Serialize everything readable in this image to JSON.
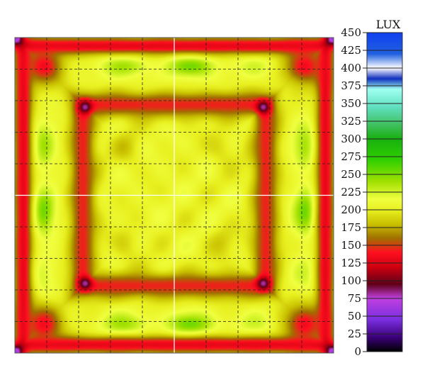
{
  "chart_data": {
    "type": "heatmap",
    "title": "",
    "xlabel": "",
    "ylabel": "",
    "colorbar": {
      "label": "LUX",
      "range": [
        0,
        450
      ],
      "ticks": [
        "0",
        "25",
        "50",
        "75",
        "100",
        "125",
        "150",
        "175",
        "200",
        "225",
        "250",
        "275",
        "300",
        "325",
        "350",
        "375",
        "400",
        "425",
        "450"
      ],
      "stops": [
        {
          "value": 0,
          "color": "#000000"
        },
        {
          "value": 20,
          "color": "#3a0078"
        },
        {
          "value": 45,
          "color": "#7a2ee0"
        },
        {
          "value": 75,
          "color": "#c040e0"
        },
        {
          "value": 95,
          "color": "#600018"
        },
        {
          "value": 120,
          "color": "#d00010"
        },
        {
          "value": 140,
          "color": "#ff1020"
        },
        {
          "value": 160,
          "color": "#a07000"
        },
        {
          "value": 180,
          "color": "#c8c000"
        },
        {
          "value": 200,
          "color": "#e8f020"
        },
        {
          "value": 215,
          "color": "#f0ff40"
        },
        {
          "value": 240,
          "color": "#a0e000"
        },
        {
          "value": 270,
          "color": "#30d000"
        },
        {
          "value": 300,
          "color": "#18b010"
        },
        {
          "value": 320,
          "color": "#40c060"
        },
        {
          "value": 345,
          "color": "#60e0c0"
        },
        {
          "value": 370,
          "color": "#a0fff0"
        },
        {
          "value": 385,
          "color": "#1030c0"
        },
        {
          "value": 400,
          "color": "#ffffff"
        },
        {
          "value": 420,
          "color": "#2060e0"
        },
        {
          "value": 450,
          "color": "#1040f0"
        }
      ]
    },
    "grid": true,
    "description_values": {
      "center": 205,
      "inner_ring": 140,
      "ring_corners": 80,
      "side_bands": 240,
      "outer_corners": 60
    }
  }
}
